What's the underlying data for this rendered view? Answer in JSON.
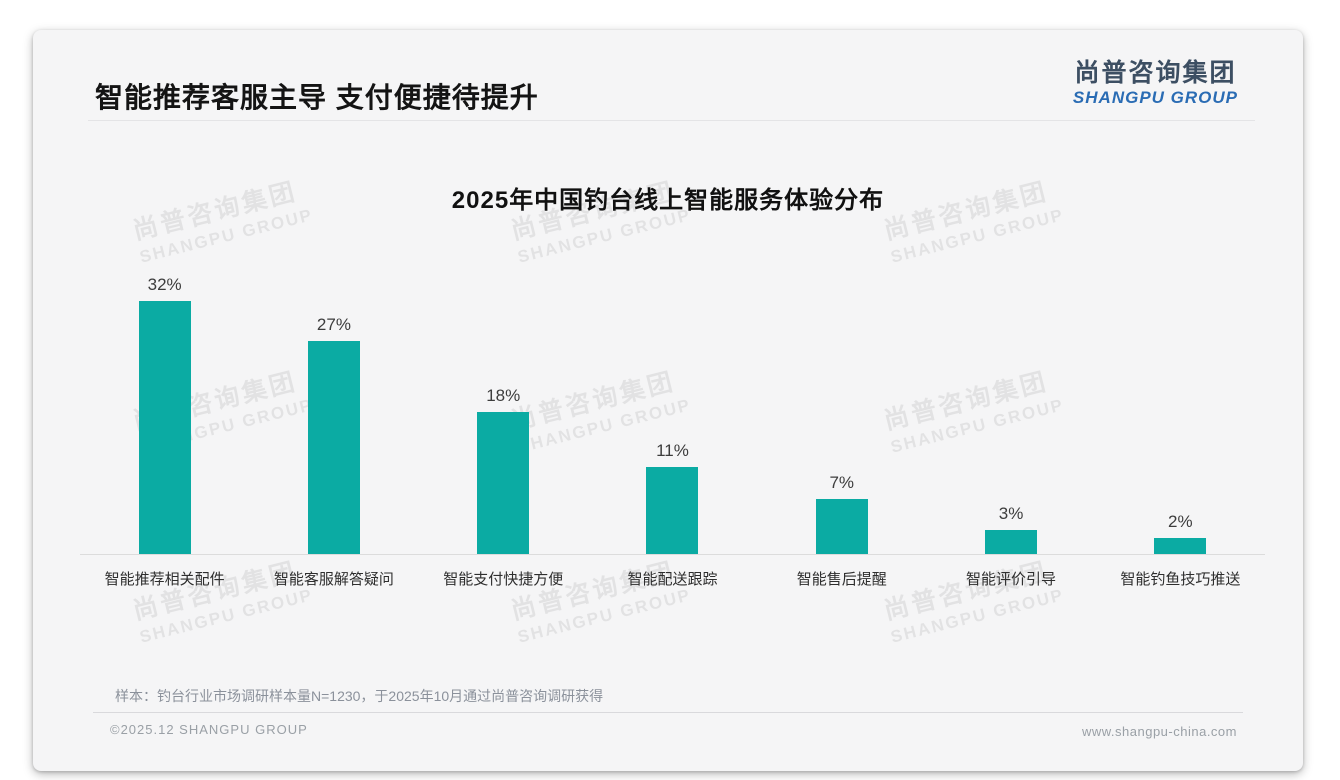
{
  "page": {
    "header": {
      "title": "智能推荐客服主导 支付便捷待提升"
    },
    "logo": {
      "cn": "尚普咨询集团",
      "en": "SHANGPU GROUP"
    },
    "watermark": {
      "cn": "尚普咨询集团",
      "en": "SHANGPU GROUP"
    },
    "footer": {
      "note": "样本：钓台行业市场调研样本量N=1230，于2025年10月通过尚普咨询调研获得",
      "copyright": "©2025.12 SHANGPU GROUP",
      "website": "www.shangpu-china.com"
    },
    "colors": {
      "bar_teal": "#0BABA3",
      "logo_dark": "#3D4F63",
      "logo_blue": "#2A6CB4",
      "card_bg": "#F5F5F6"
    }
  },
  "chart_data": {
    "type": "bar",
    "title": "2025年中国钓台线上智能服务体验分布",
    "categories": [
      "智能推荐相关配件",
      "智能客服解答疑问",
      "智能支付快捷方便",
      "智能配送跟踪",
      "智能售后提醒",
      "智能评价引导",
      "智能钓鱼技巧推送"
    ],
    "values": [
      32,
      27,
      18,
      11,
      7,
      3,
      2
    ],
    "labels": [
      "32%",
      "27%",
      "18%",
      "11%",
      "7%",
      "3%",
      "2%"
    ],
    "unit": "%",
    "xlabel": "",
    "ylabel": "",
    "ylim": [
      0,
      35
    ],
    "grid": false,
    "legend": false,
    "bar_color": "#0BABA3"
  }
}
